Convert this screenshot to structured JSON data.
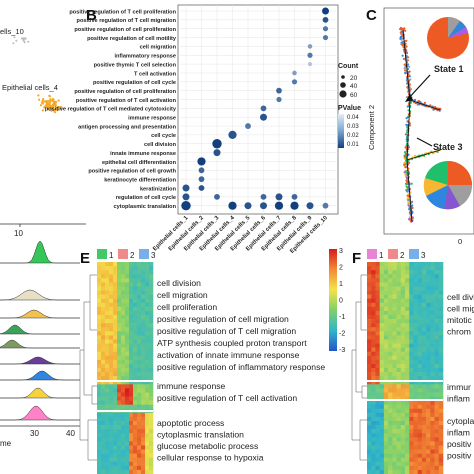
{
  "panels": {
    "A": {
      "labels": [
        "ells_10",
        "Epithelial cells_4"
      ],
      "axis_tick": "10"
    },
    "B": {
      "letter": "B",
      "terms": [
        "positive regulation of T cell proliferation",
        "positive regulation of T cell migration",
        "positive regulation of cell proliferation",
        "positive regulation of cell motility",
        "cell migration",
        "inflammatory response",
        "positive thymic T cell selection",
        "T cell activation",
        "positive regulation of cell cycle",
        "positive regulation of cell proliferation",
        "positive regulation of T cell activation",
        "positive regulation of T cell mediated cytotoxicity",
        "immune response",
        "antigen processing and presentation",
        "cell cycle",
        "cell division",
        "innate immune response",
        "epithelial cell differentiation",
        "positive regulation of cell growth",
        "keratinocyte differentiation",
        "keratinization",
        "regulation of cell cycle",
        "cytoplasmic translation"
      ],
      "clusters": [
        "Epithelial cells_1",
        "Epithelial cells_2",
        "Epithelial cells_3",
        "Epithelial cells_4",
        "Epithelial cells_5",
        "Epithelial cells_6",
        "Epithelial cells_7",
        "Epithelial cells_8",
        "Epithelial cells_9",
        "Epithelial cells_10"
      ],
      "x_ticks": [
        "1",
        "2",
        "3",
        "4",
        "5",
        "6",
        "7",
        "8",
        "9"
      ],
      "x_prefix": "Epithelial cells_",
      "x_last": "Epithelial cells_10",
      "legend_count_title": "Count",
      "legend_count_values": [
        "20",
        "40",
        "60"
      ],
      "legend_p_title": "PValue",
      "legend_p_values": [
        "0.04",
        "0.03",
        "0.02",
        "0.01"
      ],
      "dots": [
        {
          "term": 0,
          "cluster": 9,
          "count": 8,
          "p": 0.005
        },
        {
          "term": 1,
          "cluster": 9,
          "count": 6,
          "p": 0.01
        },
        {
          "term": 2,
          "cluster": 9,
          "count": 5,
          "p": 0.02
        },
        {
          "term": 3,
          "cluster": 9,
          "count": 5,
          "p": 0.02
        },
        {
          "term": 4,
          "cluster": 8,
          "count": 4,
          "p": 0.03
        },
        {
          "term": 5,
          "cluster": 8,
          "count": 5,
          "p": 0.02
        },
        {
          "term": 6,
          "cluster": 8,
          "count": 3,
          "p": 0.04
        },
        {
          "term": 7,
          "cluster": 7,
          "count": 4,
          "p": 0.03
        },
        {
          "term": 8,
          "cluster": 7,
          "count": 5,
          "p": 0.02
        },
        {
          "term": 9,
          "cluster": 6,
          "count": 6,
          "p": 0.015
        },
        {
          "term": 10,
          "cluster": 6,
          "count": 5,
          "p": 0.02
        },
        {
          "term": 11,
          "cluster": 5,
          "count": 6,
          "p": 0.015
        },
        {
          "term": 12,
          "cluster": 5,
          "count": 8,
          "p": 0.01
        },
        {
          "term": 13,
          "cluster": 4,
          "count": 6,
          "p": 0.02
        },
        {
          "term": 14,
          "cluster": 3,
          "count": 10,
          "p": 0.01
        },
        {
          "term": 15,
          "cluster": 2,
          "count": 12,
          "p": 0.005
        },
        {
          "term": 16,
          "cluster": 2,
          "count": 8,
          "p": 0.01
        },
        {
          "term": 17,
          "cluster": 1,
          "count": 10,
          "p": 0.005
        },
        {
          "term": 18,
          "cluster": 1,
          "count": 6,
          "p": 0.015
        },
        {
          "term": 19,
          "cluster": 1,
          "count": 6,
          "p": 0.015
        },
        {
          "term": 20,
          "cluster": 0,
          "count": 8,
          "p": 0.01
        },
        {
          "term": 21,
          "cluster": 0,
          "count": 8,
          "p": 0.01
        },
        {
          "term": 22,
          "cluster": 0,
          "count": 12,
          "p": 0.005
        },
        {
          "term": 20,
          "cluster": 1,
          "count": 6,
          "p": 0.01
        },
        {
          "term": 21,
          "cluster": 2,
          "count": 6,
          "p": 0.015
        },
        {
          "term": 22,
          "cluster": 3,
          "count": 10,
          "p": 0.005
        },
        {
          "term": 22,
          "cluster": 4,
          "count": 8,
          "p": 0.01
        },
        {
          "term": 22,
          "cluster": 5,
          "count": 8,
          "p": 0.01
        },
        {
          "term": 21,
          "cluster": 5,
          "count": 6,
          "p": 0.015
        },
        {
          "term": 22,
          "cluster": 6,
          "count": 10,
          "p": 0.005
        },
        {
          "term": 21,
          "cluster": 6,
          "count": 8,
          "p": 0.01
        },
        {
          "term": 22,
          "cluster": 7,
          "count": 10,
          "p": 0.005
        },
        {
          "term": 21,
          "cluster": 7,
          "count": 6,
          "p": 0.015
        },
        {
          "term": 22,
          "cluster": 8,
          "count": 8,
          "p": 0.01
        },
        {
          "term": 22,
          "cluster": 9,
          "count": 6,
          "p": 0.02
        }
      ]
    },
    "C": {
      "letter": "C",
      "ylabel": "Component 2",
      "state1": "State 1",
      "state3": "State 3",
      "xtick": "0"
    },
    "D": {
      "axis_ticks": [
        "30",
        "40"
      ],
      "axis_label": "me"
    },
    "E": {
      "letter": "E",
      "legend": [
        "1",
        "2",
        "3"
      ],
      "colorbar_ticks": [
        "3",
        "2",
        "1",
        "0",
        "-1",
        "-2",
        "-3"
      ],
      "cluster1_terms": [
        "cell division",
        "cell migration",
        "cell proliferation",
        "positive regulation of cell migration",
        "positive regulation of T cell migration",
        "ATP synthesis coupled proton transport",
        "activation of innate immune response",
        "positive regulation of inflammatory response"
      ],
      "cluster2_terms": [
        "immune response",
        "positive regulation of T cell activation"
      ],
      "cluster3_terms": [
        "apoptotic process",
        "cytoplasmic translation",
        "glucose metabolic process",
        "cellular response to hypoxia"
      ]
    },
    "F": {
      "letter": "F",
      "legend": [
        "1",
        "2",
        "3"
      ],
      "terms_a": [
        "cell divi",
        "cell migr",
        "mitotic",
        "chrom"
      ],
      "terms_b": [
        "immur",
        "inflam"
      ],
      "terms_c": [
        "cytopla",
        "inflam",
        "positiv",
        "positiv"
      ]
    }
  },
  "colors": {
    "cluster1": "#44c767",
    "cluster2": "#f08a8a",
    "cluster3": "#79aee8",
    "f_cluster1": "#e884d8",
    "f_cluster2": "#f08a8a",
    "f_cluster3": "#79aee8"
  }
}
